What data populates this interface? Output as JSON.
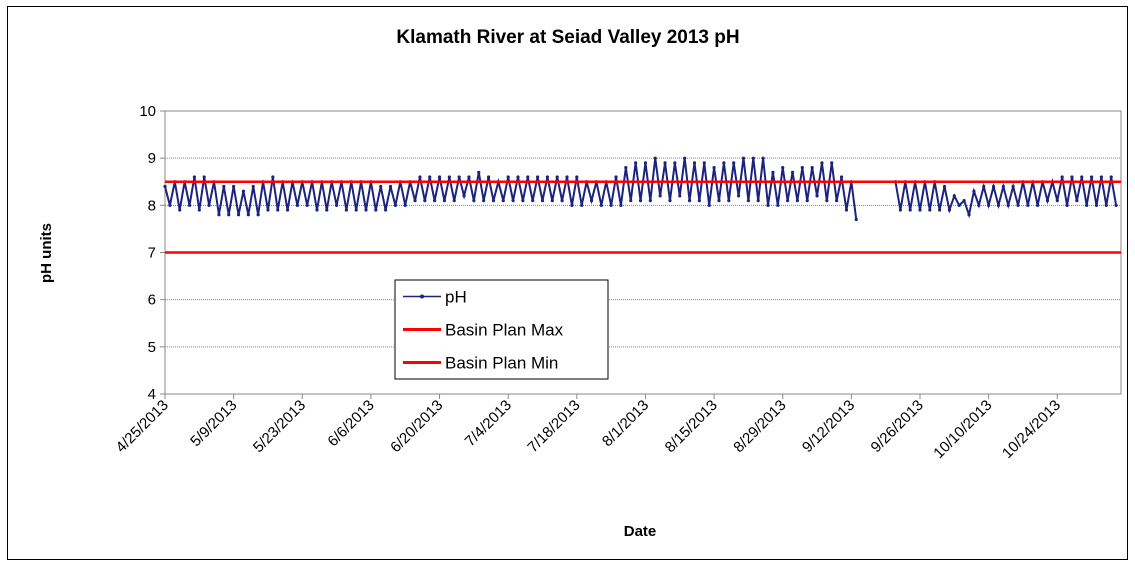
{
  "chart_data": {
    "type": "line",
    "title": "Klamath River at Seiad Valley 2013 pH",
    "x_label": "Date",
    "y_label": "pH units",
    "xlim": [
      "4/25/2013",
      "11/6/2013"
    ],
    "xticks": [
      "4/25/2013",
      "5/9/2013",
      "5/23/2013",
      "6/6/2013",
      "6/20/2013",
      "7/4/2013",
      "7/18/2013",
      "8/1/2013",
      "8/15/2013",
      "8/29/2013",
      "9/12/2013",
      "9/26/2013",
      "10/10/2013",
      "10/24/2013"
    ],
    "ylim": [
      4,
      10
    ],
    "yticks": [
      4,
      5,
      6,
      7,
      8,
      9,
      10
    ],
    "grid": true,
    "x": [
      "4/25/2013",
      "4/26/2013",
      "4/27/2013",
      "4/28/2013",
      "4/29/2013",
      "4/30/2013",
      "5/1/2013",
      "5/2/2013",
      "5/3/2013",
      "5/4/2013",
      "5/5/2013",
      "5/6/2013",
      "5/7/2013",
      "5/8/2013",
      "5/9/2013",
      "5/10/2013",
      "5/11/2013",
      "5/12/2013",
      "5/13/2013",
      "5/14/2013",
      "5/15/2013",
      "5/16/2013",
      "5/17/2013",
      "5/18/2013",
      "5/19/2013",
      "5/20/2013",
      "5/21/2013",
      "5/22/2013",
      "5/23/2013",
      "5/24/2013",
      "5/25/2013",
      "5/26/2013",
      "5/27/2013",
      "5/28/2013",
      "5/29/2013",
      "5/30/2013",
      "5/31/2013",
      "6/1/2013",
      "6/2/2013",
      "6/3/2013",
      "6/4/2013",
      "6/5/2013",
      "6/6/2013",
      "6/7/2013",
      "6/8/2013",
      "6/9/2013",
      "6/10/2013",
      "6/11/2013",
      "6/12/2013",
      "6/13/2013",
      "6/14/2013",
      "6/15/2013",
      "6/16/2013",
      "6/17/2013",
      "6/18/2013",
      "6/19/2013",
      "6/20/2013",
      "6/21/2013",
      "6/22/2013",
      "6/23/2013",
      "6/24/2013",
      "6/25/2013",
      "6/26/2013",
      "6/27/2013",
      "6/28/2013",
      "6/29/2013",
      "6/30/2013",
      "7/1/2013",
      "7/2/2013",
      "7/3/2013",
      "7/4/2013",
      "7/5/2013",
      "7/6/2013",
      "7/7/2013",
      "7/8/2013",
      "7/9/2013",
      "7/10/2013",
      "7/11/2013",
      "7/12/2013",
      "7/13/2013",
      "7/14/2013",
      "7/15/2013",
      "7/16/2013",
      "7/17/2013",
      "7/18/2013",
      "7/19/2013",
      "7/20/2013",
      "7/21/2013",
      "7/22/2013",
      "7/23/2013",
      "7/24/2013",
      "7/25/2013",
      "7/26/2013",
      "7/27/2013",
      "7/28/2013",
      "7/29/2013",
      "7/30/2013",
      "7/31/2013",
      "8/1/2013",
      "8/2/2013",
      "8/3/2013",
      "8/4/2013",
      "8/5/2013",
      "8/6/2013",
      "8/7/2013",
      "8/8/2013",
      "8/9/2013",
      "8/10/2013",
      "8/11/2013",
      "8/12/2013",
      "8/13/2013",
      "8/14/2013",
      "8/15/2013",
      "8/16/2013",
      "8/17/2013",
      "8/18/2013",
      "8/19/2013",
      "8/20/2013",
      "8/21/2013",
      "8/22/2013",
      "8/23/2013",
      "8/24/2013",
      "8/25/2013",
      "8/26/2013",
      "8/27/2013",
      "8/28/2013",
      "8/29/2013",
      "8/30/2013",
      "8/31/2013",
      "9/1/2013",
      "9/2/2013",
      "9/3/2013",
      "9/4/2013",
      "9/5/2013",
      "9/6/2013",
      "9/7/2013",
      "9/8/2013",
      "9/9/2013",
      "9/10/2013",
      "9/11/2013",
      "9/12/2013",
      "9/13/2013",
      "9/14/2013",
      "9/15/2013",
      "9/16/2013",
      "9/17/2013",
      "9/18/2013",
      "9/19/2013",
      "9/20/2013",
      "9/21/2013",
      "9/22/2013",
      "9/23/2013",
      "9/24/2013",
      "9/25/2013",
      "9/26/2013",
      "9/27/2013",
      "9/28/2013",
      "9/29/2013",
      "9/30/2013",
      "10/1/2013",
      "10/2/2013",
      "10/3/2013",
      "10/4/2013",
      "10/5/2013",
      "10/6/2013",
      "10/7/2013",
      "10/8/2013",
      "10/9/2013",
      "10/10/2013",
      "10/11/2013",
      "10/12/2013",
      "10/13/2013",
      "10/14/2013",
      "10/15/2013",
      "10/16/2013",
      "10/17/2013",
      "10/18/2013",
      "10/19/2013",
      "10/20/2013",
      "10/21/2013",
      "10/22/2013",
      "10/23/2013",
      "10/24/2013",
      "10/25/2013",
      "10/26/2013",
      "10/27/2013",
      "10/28/2013",
      "10/29/2013",
      "10/30/2013",
      "10/31/2013",
      "11/1/2013",
      "11/2/2013",
      "11/3/2013",
      "11/4/2013",
      "11/5/2013"
    ],
    "series": [
      {
        "name": "pH",
        "color": "#1a237e",
        "values": [
          8.4,
          8.0,
          8.5,
          7.9,
          8.5,
          8.0,
          8.6,
          7.9,
          8.6,
          8.0,
          8.5,
          7.8,
          8.4,
          7.8,
          8.4,
          7.8,
          8.3,
          7.8,
          8.4,
          7.8,
          8.5,
          7.9,
          8.6,
          7.9,
          8.5,
          7.9,
          8.5,
          8.0,
          8.5,
          8.0,
          8.5,
          7.9,
          8.5,
          7.9,
          8.5,
          8.0,
          8.5,
          7.9,
          8.5,
          7.9,
          8.5,
          7.9,
          8.5,
          7.9,
          8.4,
          7.9,
          8.4,
          8.0,
          8.5,
          8.0,
          8.5,
          8.1,
          8.6,
          8.1,
          8.6,
          8.1,
          8.6,
          8.1,
          8.6,
          8.1,
          8.6,
          8.2,
          8.6,
          8.1,
          8.7,
          8.1,
          8.6,
          8.1,
          8.5,
          8.1,
          8.6,
          8.1,
          8.6,
          8.1,
          8.6,
          8.1,
          8.6,
          8.1,
          8.6,
          8.1,
          8.6,
          8.1,
          8.6,
          8.0,
          8.6,
          8.0,
          8.5,
          8.1,
          8.5,
          8.0,
          8.5,
          8.0,
          8.6,
          8.0,
          8.8,
          8.1,
          8.9,
          8.1,
          8.9,
          8.1,
          9.0,
          8.2,
          8.9,
          8.1,
          8.9,
          8.2,
          9.0,
          8.1,
          8.9,
          8.1,
          8.9,
          8.0,
          8.8,
          8.1,
          8.9,
          8.1,
          8.9,
          8.2,
          9.0,
          8.1,
          9.0,
          8.1,
          9.0,
          8.0,
          8.7,
          8.0,
          8.8,
          8.1,
          8.7,
          8.1,
          8.8,
          8.1,
          8.8,
          8.2,
          8.9,
          8.1,
          8.9,
          8.1,
          8.6,
          7.9,
          8.5,
          7.7,
          null,
          null,
          null,
          null,
          null,
          null,
          null,
          8.5,
          7.9,
          8.5,
          7.9,
          8.5,
          7.9,
          8.5,
          7.9,
          8.5,
          7.9,
          8.4,
          7.9,
          8.2,
          8.0,
          8.1,
          7.8,
          8.3,
          8.0,
          8.4,
          8.0,
          8.4,
          8.0,
          8.4,
          8.0,
          8.4,
          8.0,
          8.5,
          8.0,
          8.5,
          8.0,
          8.5,
          8.1,
          8.5,
          8.1,
          8.6,
          8.0,
          8.6,
          8.1,
          8.6,
          8.0,
          8.6,
          8.0,
          8.6,
          8.0,
          8.6,
          8.0
        ]
      },
      {
        "name": "Basin Plan Max",
        "color": "#ff0000",
        "x": [
          "4/25/2013",
          "11/6/2013"
        ],
        "values": [
          8.5,
          8.5
        ]
      },
      {
        "name": "Basin Plan Min",
        "color": "#ff0000",
        "x": [
          "4/25/2013",
          "11/6/2013"
        ],
        "values": [
          7,
          7
        ]
      }
    ]
  }
}
